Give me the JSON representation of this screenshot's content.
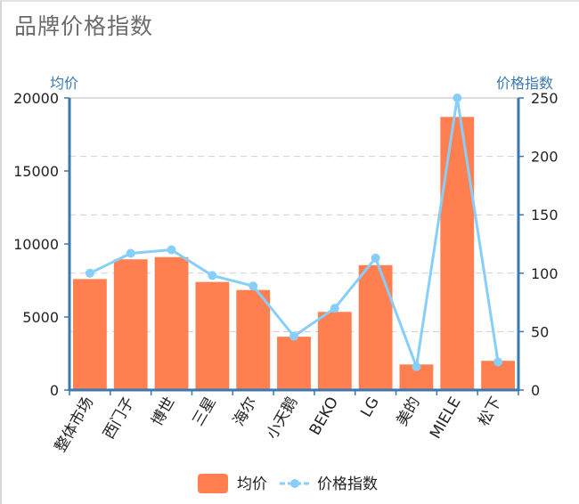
{
  "title": "品牌价格指数",
  "colors": {
    "bar": "#ff7f50",
    "line": "#87cefa",
    "axis": "#3a78b0",
    "grid": "#cfcfcf"
  },
  "chart_data": {
    "type": "bar",
    "title": "品牌价格指数",
    "categories": [
      "整体市场",
      "西门子",
      "博世",
      "三星",
      "海尔",
      "小天鹅",
      "BEKO",
      "LG",
      "美的",
      "MIELE",
      "松下"
    ],
    "series": [
      {
        "name": "均价",
        "type": "bar",
        "axis": "left",
        "values": [
          7600,
          8950,
          9100,
          7400,
          6850,
          3650,
          5350,
          8550,
          1750,
          18700,
          2000
        ]
      },
      {
        "name": "价格指数",
        "type": "line",
        "axis": "right",
        "values": [
          100,
          117,
          120,
          98,
          89,
          46,
          70,
          113,
          20,
          250,
          24
        ]
      }
    ],
    "ylabel_left": "均价",
    "ylabel_right": "价格指数",
    "ylim_left": [
      0,
      20000
    ],
    "ylim_right": [
      0,
      250
    ],
    "yticks_left": [
      "0",
      "5000",
      "10000",
      "15000",
      "20000"
    ],
    "yticks_right": [
      "0",
      "50",
      "100",
      "150",
      "200",
      "250"
    ],
    "grid": true,
    "legend": "bottom"
  }
}
